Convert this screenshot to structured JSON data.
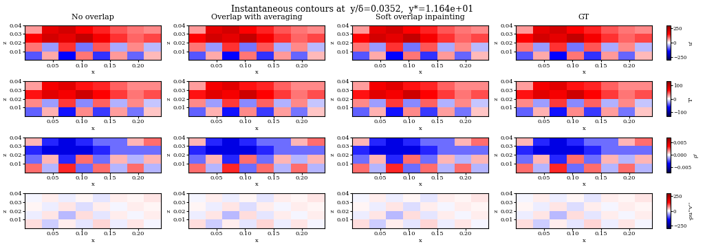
{
  "chart_data": {
    "type": "heatmap",
    "title": "Instantaneous contours at  y/δ=0.0352,  y*=1.164e+01",
    "columns": [
      "No overlap",
      "Overlap with averaging",
      "Soft overlap inpainting",
      "GT"
    ],
    "xlabel": "x",
    "ylabel": "z",
    "xlim": [
      0.0,
      0.24
    ],
    "ylim": [
      0.0,
      0.04
    ],
    "xticks": [
      {
        "value": 0.05,
        "label": "0.05"
      },
      {
        "value": 0.1,
        "label": "0.10"
      },
      {
        "value": 0.15,
        "label": "0.15"
      },
      {
        "value": 0.2,
        "label": "0.20"
      }
    ],
    "yticks": [
      0.01,
      0.02,
      0.03,
      0.04
    ],
    "rows": [
      {
        "colorbar_label": "u'",
        "colorbar_range": [
          -300,
          300
        ],
        "colorbar_ticks": [
          {
            "value": -250,
            "label": "−250"
          },
          0,
          250
        ],
        "panels": [
          [
            [
              -100,
              50,
              -150,
              80,
              -120,
              60,
              -90,
              40
            ],
            [
              80,
              -60,
              120,
              -80,
              100,
              -50,
              70,
              -40
            ],
            [
              150,
              200,
              180,
              220,
              160,
              120,
              90,
              110
            ],
            [
              60,
              180,
              200,
              150,
              130,
              100,
              80,
              70
            ]
          ],
          [
            [
              -100,
              50,
              -150,
              80,
              -120,
              60,
              -90,
              40
            ],
            [
              80,
              -60,
              120,
              -80,
              100,
              -50,
              70,
              -40
            ],
            [
              150,
              200,
              180,
              220,
              160,
              120,
              90,
              110
            ],
            [
              60,
              180,
              200,
              150,
              130,
              100,
              80,
              70
            ]
          ],
          [
            [
              -100,
              50,
              -150,
              80,
              -120,
              60,
              -90,
              40
            ],
            [
              80,
              -60,
              120,
              -80,
              100,
              -50,
              70,
              -40
            ],
            [
              150,
              200,
              180,
              220,
              160,
              120,
              90,
              110
            ],
            [
              60,
              180,
              200,
              150,
              130,
              100,
              80,
              70
            ]
          ],
          [
            [
              -100,
              50,
              -150,
              80,
              -120,
              60,
              -90,
              40
            ],
            [
              80,
              -60,
              120,
              -80,
              100,
              -50,
              70,
              -40
            ],
            [
              150,
              200,
              180,
              220,
              160,
              120,
              90,
              110
            ],
            [
              60,
              180,
              200,
              150,
              130,
              100,
              80,
              70
            ]
          ]
        ]
      },
      {
        "colorbar_label": "T'",
        "colorbar_range": [
          -130,
          130
        ],
        "colorbar_ticks": [
          {
            "value": -100,
            "label": "−100"
          },
          0,
          100
        ],
        "panels": [
          [
            [
              -40,
              20,
              -60,
              30,
              -50,
              25,
              -35,
              15
            ],
            [
              30,
              -25,
              50,
              -30,
              40,
              -20,
              30,
              -15
            ],
            [
              60,
              80,
              70,
              90,
              65,
              50,
              35,
              45
            ],
            [
              25,
              70,
              80,
              60,
              55,
              40,
              30,
              30
            ]
          ],
          [
            [
              -40,
              20,
              -60,
              30,
              -50,
              25,
              -35,
              15
            ],
            [
              30,
              -25,
              50,
              -30,
              40,
              -20,
              30,
              -15
            ],
            [
              60,
              80,
              70,
              90,
              65,
              50,
              35,
              45
            ],
            [
              25,
              70,
              80,
              60,
              55,
              40,
              30,
              30
            ]
          ],
          [
            [
              -40,
              20,
              -60,
              30,
              -50,
              25,
              -35,
              15
            ],
            [
              30,
              -25,
              50,
              -30,
              40,
              -20,
              30,
              -15
            ],
            [
              60,
              80,
              70,
              90,
              65,
              50,
              35,
              45
            ],
            [
              25,
              70,
              80,
              60,
              55,
              40,
              30,
              30
            ]
          ],
          [
            [
              -40,
              20,
              -60,
              30,
              -50,
              25,
              -35,
              15
            ],
            [
              30,
              -25,
              50,
              -30,
              40,
              -20,
              30,
              -15
            ],
            [
              60,
              80,
              70,
              90,
              65,
              50,
              35,
              45
            ],
            [
              25,
              70,
              80,
              60,
              55,
              40,
              30,
              30
            ]
          ]
        ]
      },
      {
        "colorbar_label": "ρ'",
        "colorbar_range": [
          -0.007,
          0.007
        ],
        "colorbar_ticks": [
          {
            "value": -0.005,
            "label": "−0.005"
          },
          {
            "value": 0.0,
            "label": "0.000"
          },
          {
            "value": 0.005,
            "label": "0.005"
          }
        ],
        "panels": [
          [
            [
              0.002,
              -0.001,
              0.003,
              -0.002,
              0.002,
              -0.001,
              0.002,
              -0.001
            ],
            [
              -0.002,
              0.001,
              -0.003,
              0.002,
              -0.002,
              0.001,
              -0.001,
              0.001
            ],
            [
              -0.003,
              -0.004,
              -0.004,
              -0.004,
              -0.003,
              -0.002,
              -0.002,
              -0.002
            ],
            [
              0.001,
              -0.003,
              -0.004,
              -0.003,
              -0.002,
              -0.002,
              0.001,
              0.002
            ]
          ],
          [
            [
              0.002,
              -0.001,
              0.003,
              -0.002,
              0.002,
              -0.001,
              0.002,
              -0.001
            ],
            [
              -0.002,
              0.001,
              -0.003,
              0.002,
              -0.002,
              0.001,
              -0.001,
              0.001
            ],
            [
              -0.003,
              -0.004,
              -0.004,
              -0.004,
              -0.003,
              -0.002,
              -0.002,
              -0.002
            ],
            [
              0.001,
              -0.003,
              -0.004,
              -0.003,
              -0.002,
              -0.002,
              0.001,
              0.002
            ]
          ],
          [
            [
              0.002,
              -0.001,
              0.003,
              -0.002,
              0.002,
              -0.001,
              0.002,
              -0.001
            ],
            [
              -0.002,
              0.001,
              -0.003,
              0.002,
              -0.002,
              0.001,
              -0.001,
              0.001
            ],
            [
              -0.003,
              -0.004,
              -0.004,
              -0.004,
              -0.003,
              -0.002,
              -0.002,
              -0.002
            ],
            [
              0.001,
              -0.003,
              -0.004,
              -0.003,
              -0.002,
              -0.002,
              0.001,
              0.002
            ]
          ],
          [
            [
              0.002,
              -0.001,
              0.003,
              -0.002,
              0.002,
              -0.001,
              0.002,
              -0.001
            ],
            [
              -0.002,
              0.001,
              -0.003,
              0.002,
              -0.002,
              0.001,
              -0.001,
              0.001
            ],
            [
              -0.003,
              -0.004,
              -0.004,
              -0.004,
              -0.003,
              -0.002,
              -0.002,
              -0.002
            ],
            [
              0.001,
              -0.003,
              -0.004,
              -0.003,
              -0.002,
              -0.002,
              0.001,
              0.002
            ]
          ]
        ]
      },
      {
        "colorbar_label": "-ρu''v''",
        "colorbar_range": [
          -300,
          300
        ],
        "colorbar_ticks": [
          {
            "value": -250,
            "label": "−250"
          },
          0,
          250
        ],
        "panels": [
          [
            [
              20,
              -30,
              10,
              -15,
              25,
              -10,
              15,
              -5
            ],
            [
              -10,
              15,
              -40,
              20,
              -15,
              10,
              -5,
              10
            ],
            [
              5,
              -10,
              15,
              -20,
              10,
              -5,
              10,
              5
            ],
            [
              -5,
              10,
              -10,
              5,
              -15,
              10,
              5,
              15
            ]
          ],
          [
            [
              20,
              -30,
              10,
              -15,
              25,
              -10,
              15,
              -5
            ],
            [
              -10,
              15,
              -40,
              20,
              -15,
              10,
              -5,
              10
            ],
            [
              5,
              -10,
              15,
              -20,
              10,
              -5,
              10,
              5
            ],
            [
              -5,
              10,
              -10,
              5,
              -15,
              10,
              5,
              15
            ]
          ],
          [
            [
              20,
              -30,
              10,
              -15,
              25,
              -10,
              15,
              -5
            ],
            [
              -10,
              15,
              -40,
              20,
              -15,
              10,
              -5,
              10
            ],
            [
              5,
              -10,
              15,
              -20,
              10,
              -5,
              10,
              5
            ],
            [
              -5,
              10,
              -10,
              5,
              -15,
              10,
              5,
              15
            ]
          ],
          [
            [
              20,
              -30,
              10,
              -15,
              25,
              -10,
              15,
              -5
            ],
            [
              -10,
              15,
              -40,
              20,
              -15,
              10,
              -5,
              10
            ],
            [
              5,
              -10,
              15,
              -20,
              10,
              -5,
              10,
              5
            ],
            [
              -5,
              10,
              -10,
              5,
              -15,
              10,
              5,
              15
            ]
          ]
        ]
      }
    ]
  }
}
